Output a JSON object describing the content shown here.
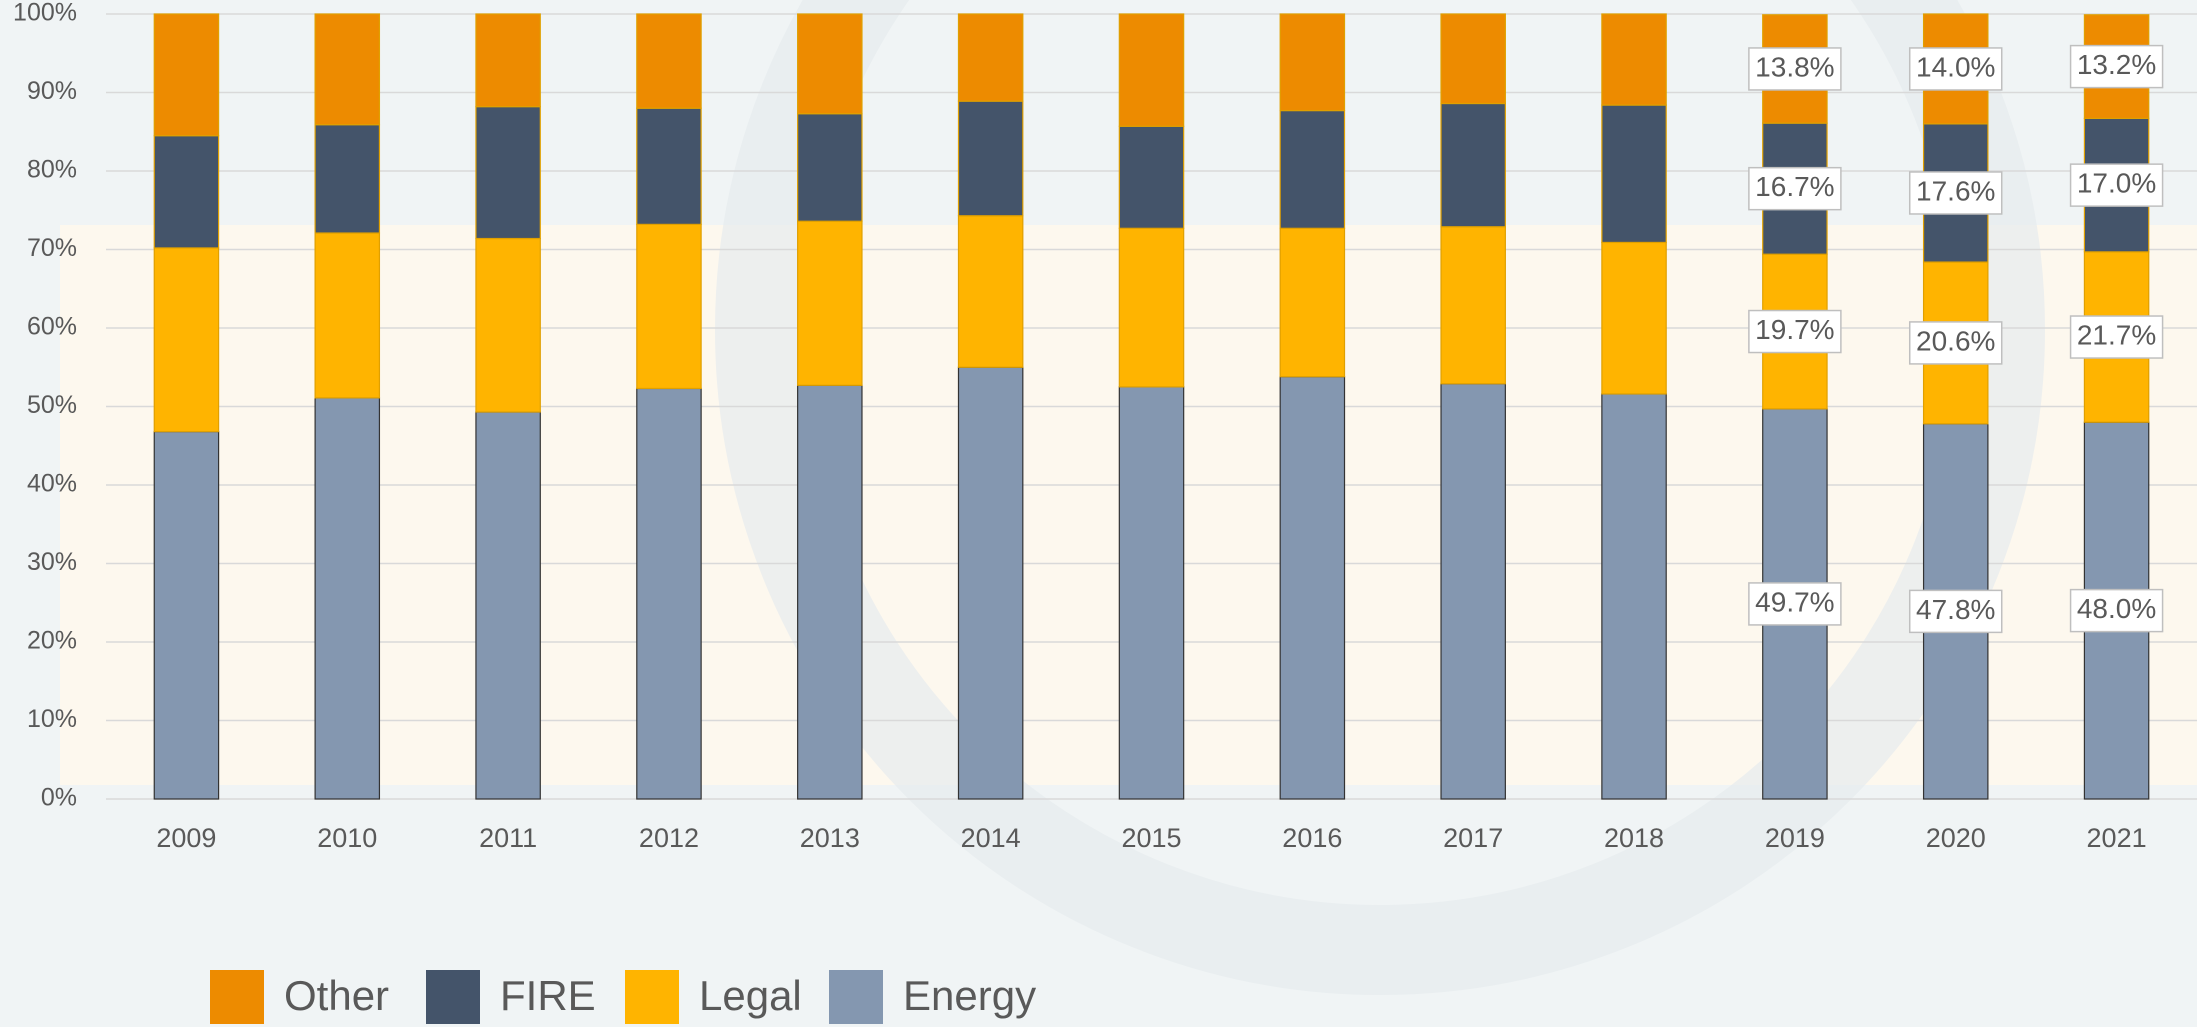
{
  "chart_data": {
    "type": "stacked_bar",
    "categories": [
      "2009",
      "2010",
      "2011",
      "2012",
      "2013",
      "2014",
      "2015",
      "2016",
      "2017",
      "2018",
      "2019",
      "2020",
      "2021"
    ],
    "series": [
      {
        "name": "Energy",
        "color": "#8497b0",
        "values": [
          46.8,
          51.1,
          49.3,
          52.3,
          52.7,
          55.0,
          52.5,
          53.8,
          52.9,
          51.6,
          49.7,
          47.8,
          48.0
        ],
        "value_labels": [
          null,
          null,
          null,
          null,
          null,
          null,
          null,
          null,
          null,
          null,
          "49.7%",
          "47.8%",
          "48.0%"
        ]
      },
      {
        "name": "Legal",
        "color": "#ffb400",
        "values": [
          23.4,
          21.0,
          22.1,
          20.9,
          20.9,
          19.3,
          20.2,
          18.9,
          20.0,
          19.3,
          19.7,
          20.6,
          21.7
        ],
        "value_labels": [
          null,
          null,
          null,
          null,
          null,
          null,
          null,
          null,
          null,
          null,
          "19.7%",
          "20.6%",
          "21.7%"
        ]
      },
      {
        "name": "FIRE",
        "color": "#44546a",
        "values": [
          14.3,
          13.8,
          16.8,
          14.8,
          13.7,
          14.6,
          13.0,
          15.0,
          15.7,
          17.5,
          16.7,
          17.6,
          17.0
        ],
        "value_labels": [
          null,
          null,
          null,
          null,
          null,
          null,
          null,
          null,
          null,
          null,
          "16.7%",
          "17.6%",
          "17.0%"
        ]
      },
      {
        "name": "Other",
        "color": "#ed8b00",
        "values": [
          15.5,
          14.1,
          11.8,
          12.0,
          12.7,
          11.1,
          14.3,
          12.3,
          11.4,
          11.6,
          13.8,
          14.0,
          13.2
        ],
        "value_labels": [
          null,
          null,
          null,
          null,
          null,
          null,
          null,
          null,
          null,
          null,
          "13.8%",
          "14.0%",
          "13.2%"
        ]
      }
    ],
    "ylim": [
      0,
      100
    ],
    "yticks": [
      {
        "value": 0,
        "label": "0%"
      },
      {
        "value": 10,
        "label": "10%"
      },
      {
        "value": 20,
        "label": "20%"
      },
      {
        "value": 30,
        "label": "30%"
      },
      {
        "value": 40,
        "label": "40%"
      },
      {
        "value": 50,
        "label": "50%"
      },
      {
        "value": 60,
        "label": "60%"
      },
      {
        "value": 70,
        "label": "70%"
      },
      {
        "value": 80,
        "label": "80%"
      },
      {
        "value": 90,
        "label": "90%"
      },
      {
        "value": 100,
        "label": "100%"
      }
    ],
    "grid": true,
    "legend": "bottom"
  }
}
